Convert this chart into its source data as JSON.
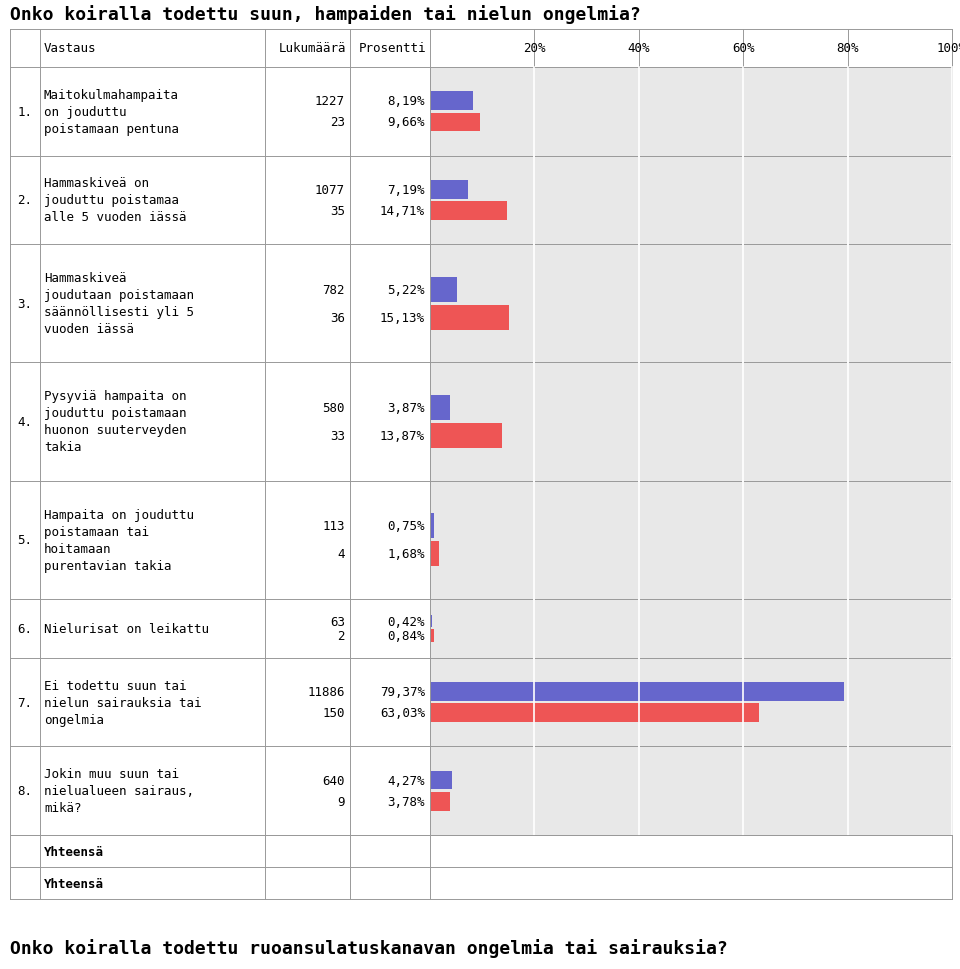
{
  "title_top": "Onko koiralla todettu suun, hampaiden tai nielun ongelmia?",
  "title_bottom": "Onko koiralla todettu ruoansulatuskanavan ongelmia tai sairauksia?",
  "rows": [
    {
      "num": "1.",
      "label": "Maitokulmahampaita\non jouduttu\npoistamaan pentuna",
      "count1": "1227",
      "pct1": "8,19%",
      "val1": 8.19,
      "count2": "23",
      "pct2": "9,66%",
      "val2": 9.66,
      "nlines": 3
    },
    {
      "num": "2.",
      "label": "Hammaskiveä on\njouduttu poistamaa\nalle 5 vuoden iässä",
      "count1": "1077",
      "pct1": "7,19%",
      "val1": 7.19,
      "count2": "35",
      "pct2": "14,71%",
      "val2": 14.71,
      "nlines": 3
    },
    {
      "num": "3.",
      "label": "Hammaskiveä\njoudutaan poistamaan\nsäännöllisesti yli 5\nvuoden iässä",
      "count1": "782",
      "pct1": "5,22%",
      "val1": 5.22,
      "count2": "36",
      "pct2": "15,13%",
      "val2": 15.13,
      "nlines": 4
    },
    {
      "num": "4.",
      "label": "Pysyviä hampaita on\njouduttu poistamaan\nhuonon suuterveyden\ntakia",
      "count1": "580",
      "pct1": "3,87%",
      "val1": 3.87,
      "count2": "33",
      "pct2": "13,87%",
      "val2": 13.87,
      "nlines": 4
    },
    {
      "num": "5.",
      "label": "Hampaita on jouduttu\npoistamaan tai\nhoitamaan\npurentavian takia",
      "count1": "113",
      "pct1": "0,75%",
      "val1": 0.75,
      "count2": "4",
      "pct2": "1,68%",
      "val2": 1.68,
      "nlines": 4
    },
    {
      "num": "6.",
      "label": "Nielurisat on leikattu",
      "count1": "63",
      "pct1": "0,42%",
      "val1": 0.42,
      "count2": "2",
      "pct2": "0,84%",
      "val2": 0.84,
      "nlines": 2
    },
    {
      "num": "7.",
      "label": "Ei todettu suun tai\nnielun sairauksia tai\nongelmia",
      "count1": "11886",
      "pct1": "79,37%",
      "val1": 79.37,
      "count2": "150",
      "pct2": "63,03%",
      "val2": 63.03,
      "nlines": 3
    },
    {
      "num": "8.",
      "label": "Jokin muu suun tai\nnielualueen sairaus,\nmikä?",
      "count1": "640",
      "pct1": "4,27%",
      "val1": 4.27,
      "count2": "9",
      "pct2": "3,78%",
      "val2": 3.78,
      "nlines": 3
    }
  ],
  "footer_rows": [
    "Yhteensä",
    "Yhteensä"
  ],
  "blue_color": "#6666cc",
  "red_color": "#ee5555",
  "bg_color": "#e0e0e0",
  "bar_bg_color": "#e8e8e8"
}
